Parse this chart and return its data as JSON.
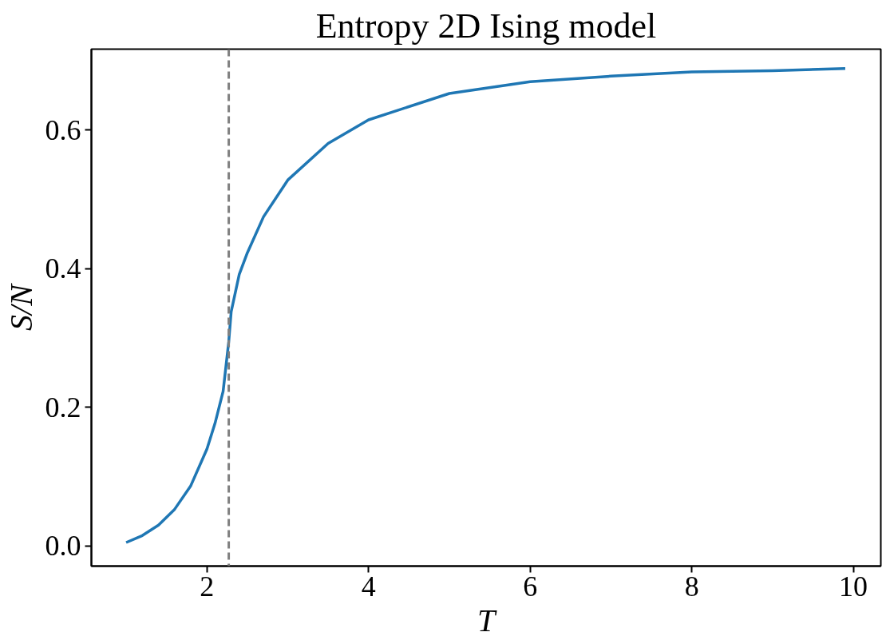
{
  "chart_data": {
    "type": "line",
    "title": "Entropy 2D Ising model",
    "xlabel": "T",
    "ylabel": "S/N",
    "x": [
      1.0,
      1.2,
      1.4,
      1.6,
      1.8,
      2.0,
      2.1,
      2.2,
      2.27,
      2.3,
      2.4,
      2.5,
      2.7,
      3.0,
      3.5,
      4.0,
      5.0,
      6.0,
      7.0,
      8.0,
      9.0,
      9.9
    ],
    "series": [
      {
        "color": "#1f77b4",
        "values": [
          0.005,
          0.015,
          0.03,
          0.053,
          0.087,
          0.14,
          0.177,
          0.223,
          0.295,
          0.338,
          0.392,
          0.423,
          0.475,
          0.528,
          0.581,
          0.615,
          0.653,
          0.67,
          0.678,
          0.684,
          0.686,
          0.689
        ]
      }
    ],
    "xlim": [
      0.57,
      10.34
    ],
    "ylim": [
      -0.029,
      0.717
    ],
    "xticks": [
      2,
      4,
      6,
      8,
      10
    ],
    "yticks": [
      {
        "value": 0,
        "label": "0.0"
      },
      0.2,
      0.4,
      0.6
    ],
    "ref_lines": [
      {
        "axis": "x",
        "value": 2.27,
        "color": "#808080",
        "line_style": "dashed"
      }
    ],
    "grid": false,
    "marker": "none",
    "line_style": "solid"
  }
}
